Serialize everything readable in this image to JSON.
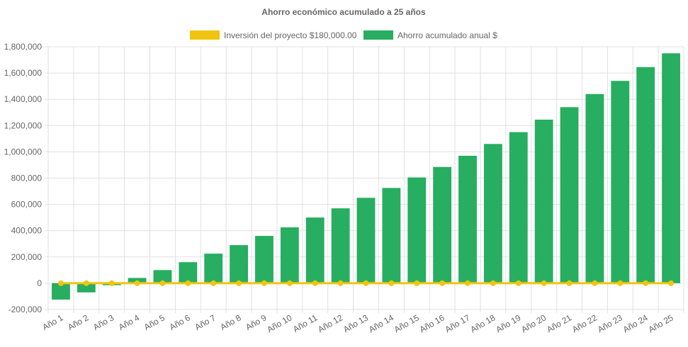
{
  "chart_data": {
    "type": "bar",
    "title": "Ahorro económico acumulado a 25 años",
    "xlabel": "",
    "ylabel": "",
    "ylim": [
      -200000,
      1800000
    ],
    "yticks": [
      "-200,000",
      "0",
      "200,000",
      "400,000",
      "600,000",
      "800,000",
      "1,000,000",
      "1,200,000",
      "1,400,000",
      "1,600,000",
      "1,800,000"
    ],
    "grid": true,
    "legend_position": "top-center",
    "categories": [
      "Año 1",
      "Año 2",
      "Año 3",
      "Año 4",
      "Año 5",
      "Año 6",
      "Año 7",
      "Año 8",
      "Año 9",
      "Año 10",
      "Año 11",
      "Año 12",
      "Año 13",
      "Año 14",
      "Año 15",
      "Año 16",
      "Año 17",
      "Año 18",
      "Año 19",
      "Año 20",
      "Año 21",
      "Año 22",
      "Año 23",
      "Año 24",
      "Año 25"
    ],
    "series": [
      {
        "name": "Inversión del proyecto $180,000.00",
        "type": "line",
        "color": "#f1c40f",
        "values": [
          0,
          0,
          0,
          0,
          0,
          0,
          0,
          0,
          0,
          0,
          0,
          0,
          0,
          0,
          0,
          0,
          0,
          0,
          0,
          0,
          0,
          0,
          0,
          0,
          0
        ]
      },
      {
        "name": "Ahorro acumulado anual $",
        "type": "bar",
        "color": "#27ae60",
        "values": [
          -125000,
          -70000,
          -15000,
          40000,
          100000,
          160000,
          225000,
          290000,
          360000,
          425000,
          500000,
          570000,
          650000,
          725000,
          805000,
          885000,
          970000,
          1060000,
          1150000,
          1245000,
          1340000,
          1440000,
          1540000,
          1645000,
          1750000
        ]
      }
    ]
  }
}
